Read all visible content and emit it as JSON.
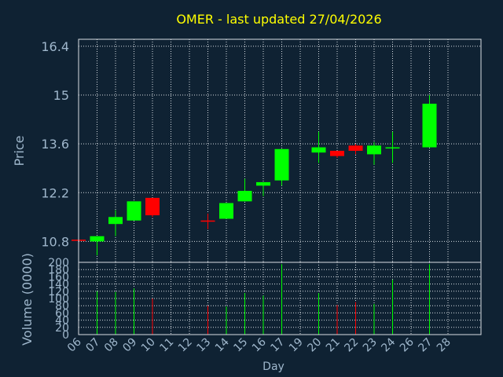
{
  "chart_data": [
    {
      "type": "candlestick",
      "title": "OMER - last updated 27/04/2026",
      "ylabel": "Price",
      "ylim": [
        10.2,
        16.6
      ],
      "yticks": [
        "16.4",
        "15",
        "13.6",
        "12.2",
        "10.8"
      ],
      "grid": true,
      "categories": [
        "06",
        "07",
        "08",
        "09",
        "10",
        "11",
        "12",
        "13",
        "14",
        "15",
        "16",
        "17",
        "19",
        "20",
        "21",
        "22",
        "23",
        "24",
        "26",
        "27",
        "28"
      ],
      "candles": [
        {
          "day": "06",
          "open": 10.85,
          "high": 10.85,
          "low": 10.85,
          "close": 10.85,
          "color": "#ff0000"
        },
        {
          "day": "07",
          "open": 10.8,
          "high": 10.95,
          "low": 10.4,
          "close": 10.95,
          "color": "#00ff00"
        },
        {
          "day": "08",
          "open": 11.3,
          "high": 11.7,
          "low": 10.95,
          "close": 11.5,
          "color": "#00ff00"
        },
        {
          "day": "09",
          "open": 11.4,
          "high": 11.95,
          "low": 11.4,
          "close": 11.95,
          "color": "#00ff00"
        },
        {
          "day": "10",
          "open": 12.05,
          "high": 12.05,
          "low": 11.5,
          "close": 11.55,
          "color": "#ff0000"
        },
        {
          "day": "13",
          "open": 11.4,
          "high": 11.6,
          "low": 11.15,
          "close": 11.4,
          "color": "#ff0000"
        },
        {
          "day": "14",
          "open": 11.45,
          "high": 11.9,
          "low": 11.45,
          "close": 11.9,
          "color": "#00ff00"
        },
        {
          "day": "15",
          "open": 11.95,
          "high": 12.6,
          "low": 11.95,
          "close": 12.25,
          "color": "#00ff00"
        },
        {
          "day": "16",
          "open": 12.4,
          "high": 12.5,
          "low": 12.1,
          "close": 12.5,
          "color": "#00ff00"
        },
        {
          "day": "17",
          "open": 12.55,
          "high": 13.45,
          "low": 12.4,
          "close": 13.45,
          "color": "#00ff00"
        },
        {
          "day": "20",
          "open": 13.35,
          "high": 13.95,
          "low": 13.05,
          "close": 13.5,
          "color": "#00ff00"
        },
        {
          "day": "21",
          "open": 13.4,
          "high": 13.4,
          "low": 13.2,
          "close": 13.25,
          "color": "#ff0000"
        },
        {
          "day": "22",
          "open": 13.55,
          "high": 13.6,
          "low": 13.3,
          "close": 13.4,
          "color": "#ff0000"
        },
        {
          "day": "23",
          "open": 13.3,
          "high": 13.65,
          "low": 13.0,
          "close": 13.55,
          "color": "#00ff00"
        },
        {
          "day": "24",
          "open": 13.5,
          "high": 13.95,
          "low": 13.05,
          "close": 13.5,
          "color": "#00ff00"
        },
        {
          "day": "27",
          "open": 13.5,
          "high": 15.0,
          "low": 13.5,
          "close": 14.75,
          "color": "#00ff00"
        }
      ]
    },
    {
      "type": "bar",
      "ylabel": "Volume (0000)",
      "xlabel": "Day",
      "ylim": [
        0,
        200
      ],
      "yticks": [
        "200",
        "180",
        "160",
        "140",
        "120",
        "100",
        "80",
        "60",
        "40",
        "20",
        "0"
      ],
      "grid": true,
      "bars": [
        {
          "day": "07",
          "value": 120,
          "color": "#00ff00"
        },
        {
          "day": "08",
          "value": 118,
          "color": "#00ff00"
        },
        {
          "day": "09",
          "value": 128,
          "color": "#00ff00"
        },
        {
          "day": "10",
          "value": 100,
          "color": "#ff0000"
        },
        {
          "day": "13",
          "value": 80,
          "color": "#ff0000"
        },
        {
          "day": "14",
          "value": 78,
          "color": "#00ff00"
        },
        {
          "day": "15",
          "value": 115,
          "color": "#00ff00"
        },
        {
          "day": "16",
          "value": 108,
          "color": "#00ff00"
        },
        {
          "day": "17",
          "value": 195,
          "color": "#00ff00"
        },
        {
          "day": "20",
          "value": 115,
          "color": "#00ff00"
        },
        {
          "day": "21",
          "value": 82,
          "color": "#ff0000"
        },
        {
          "day": "22",
          "value": 90,
          "color": "#ff0000"
        },
        {
          "day": "23",
          "value": 85,
          "color": "#00ff00"
        },
        {
          "day": "24",
          "value": 152,
          "color": "#00ff00"
        },
        {
          "day": "27",
          "value": 195,
          "color": "#00ff00"
        }
      ]
    }
  ]
}
